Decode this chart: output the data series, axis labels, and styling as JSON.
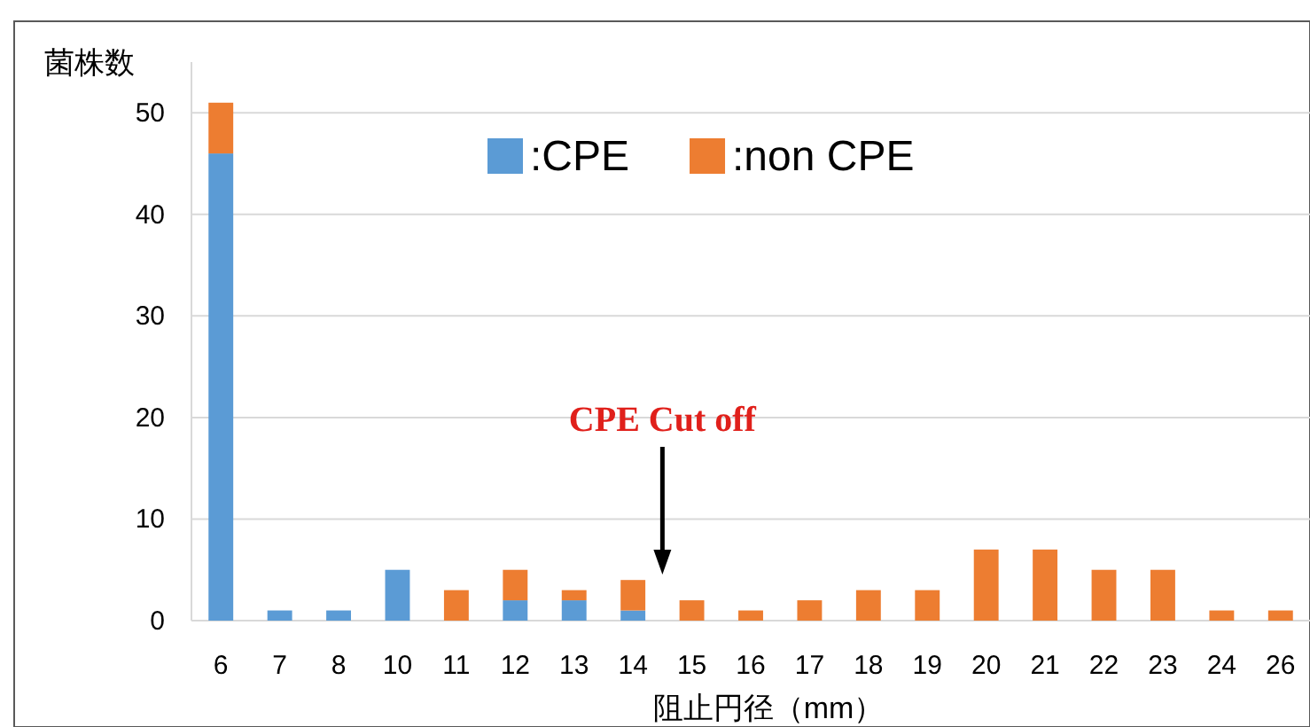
{
  "chart_data": {
    "type": "bar",
    "stacked": true,
    "ylabel": "菌株数",
    "xlabel": "阻止円径（mm）",
    "categories": [
      "6",
      "7",
      "8",
      "10",
      "11",
      "12",
      "13",
      "14",
      "15",
      "16",
      "17",
      "18",
      "19",
      "20",
      "21",
      "22",
      "23",
      "24",
      "26"
    ],
    "series": [
      {
        "name": ":CPE",
        "color": "#5b9bd5",
        "values": [
          46,
          1,
          1,
          5,
          0,
          2,
          2,
          1,
          0,
          0,
          0,
          0,
          0,
          0,
          0,
          0,
          0,
          0,
          0
        ]
      },
      {
        "name": ":non CPE",
        "color": "#ed7d31",
        "values": [
          5,
          0,
          0,
          0,
          3,
          3,
          1,
          3,
          2,
          1,
          2,
          3,
          3,
          7,
          7,
          5,
          5,
          1,
          1
        ]
      }
    ],
    "ylim": [
      0,
      55
    ],
    "yticks": [
      0,
      10,
      20,
      30,
      40,
      50
    ],
    "grid": "y",
    "legend": "top",
    "annotations": [
      "CPE Cut off"
    ]
  }
}
